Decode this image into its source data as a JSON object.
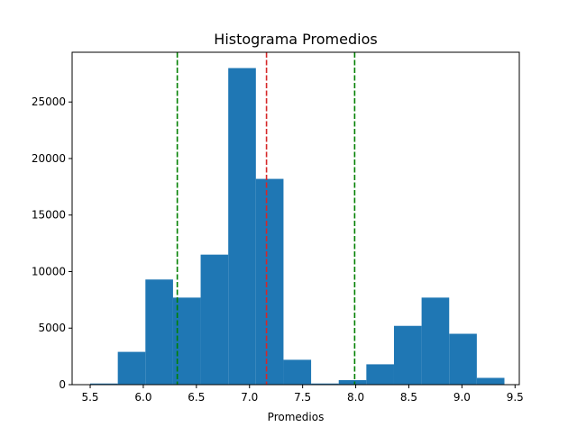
{
  "chart_data": {
    "type": "bar",
    "title": "Histograma Promedios",
    "xlabel": "Promedios",
    "ylabel": "",
    "xlim": [
      5.33,
      9.54
    ],
    "ylim": [
      0,
      29400
    ],
    "xticks": [
      5.5,
      6.0,
      6.5,
      7.0,
      7.5,
      8.0,
      8.5,
      9.0,
      9.5
    ],
    "xtick_labels": [
      "5.5",
      "6.0",
      "6.5",
      "7.0",
      "7.5",
      "8.0",
      "8.5",
      "9.0",
      "9.5"
    ],
    "yticks": [
      0,
      5000,
      10000,
      15000,
      20000,
      25000
    ],
    "ytick_labels": [
      "0",
      "5000",
      "10000",
      "15000",
      "20000",
      "25000"
    ],
    "bin_edges": [
      5.5,
      5.76,
      6.02,
      6.28,
      6.54,
      6.8,
      7.06,
      7.32,
      7.58,
      7.84,
      8.1,
      8.36,
      8.62,
      8.88,
      9.14,
      9.4
    ],
    "counts": [
      100,
      2900,
      9300,
      7700,
      11500,
      28000,
      18200,
      2200,
      100,
      400,
      1800,
      5200,
      7700,
      4500,
      600
    ],
    "bar_color": "#1f77b4",
    "vlines": [
      {
        "x": 6.32,
        "color": "#008000",
        "style": "dashed"
      },
      {
        "x": 7.16,
        "color": "#d62728",
        "style": "dashed"
      },
      {
        "x": 7.99,
        "color": "#008000",
        "style": "dashed"
      }
    ],
    "grid": false,
    "legend": "none"
  }
}
